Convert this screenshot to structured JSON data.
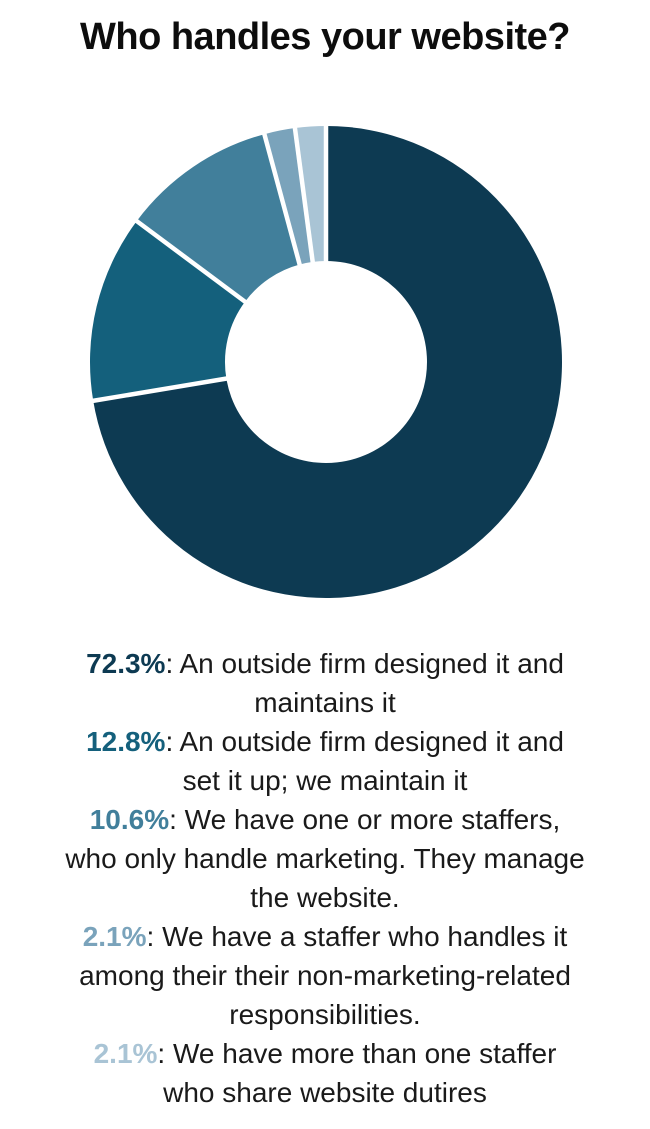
{
  "title": "Who handles your website?",
  "chart_data": {
    "type": "pie",
    "subtype": "donut",
    "title": "Who handles your website?",
    "categories": [
      "An outside firm designed it and maintains it",
      "An outside firm designed it and set it up; we maintain it",
      "We have one or more staffers, who only handle marketing. They manage the website.",
      "We have a staffer who handles it among their their non-marketing-related responsibilities.",
      "We have more than one staffer who share website dutires"
    ],
    "values": [
      72.3,
      12.8,
      10.6,
      2.1,
      2.1
    ],
    "colors": [
      "#0d3a52",
      "#14607c",
      "#417f9b",
      "#7aa3bb",
      "#a9c4d5"
    ],
    "start_angle_deg": 0,
    "direction": "clockwise",
    "inner_radius_ratio": 0.43,
    "separator_color": "#ffffff",
    "legend_position": "bottom"
  },
  "legend": {
    "items": [
      {
        "pct": "72.3%",
        "color": "#0d3a52",
        "rest": ": An outside firm designed it and\nmaintains it"
      },
      {
        "pct": "12.8%",
        "color": "#14607c",
        "rest": ": An outside firm designed it and\nset it up; we maintain it"
      },
      {
        "pct": "10.6%",
        "color": "#417f9b",
        "rest": ": We have one or more staffers,\nwho only handle marketing. They manage\nthe website."
      },
      {
        "pct": "2.1%",
        "color": "#7aa3bb",
        "rest": ": We have a staffer who handles it\namong their their non-marketing-related\nresponsibilities."
      },
      {
        "pct": "2.1%",
        "color": "#a9c4d5",
        "rest": ": We have more than one staffer\nwho share website dutires"
      }
    ]
  }
}
